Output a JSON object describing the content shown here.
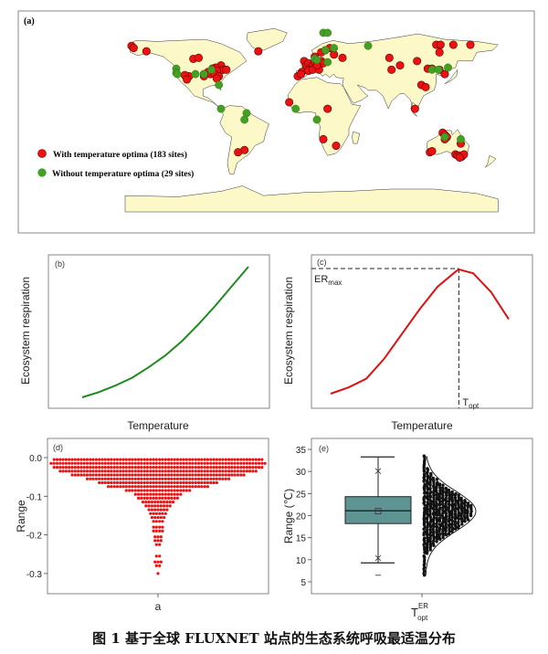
{
  "figure": {
    "caption": "图 1 基于全球 FLUXNET 站点的生态系统呼吸最适温分布"
  },
  "colors": {
    "land": "#fdf8c8",
    "coast": "#333333",
    "site_with": "#ee1111",
    "site_without": "#44a022",
    "curve_b": "#1e8a1e",
    "curve_c": "#dd1111",
    "swarm_d": "#ee1111",
    "box_fill": "#5e9494",
    "swarm_e": "#111111"
  },
  "chart_data": [
    {
      "panel": "a",
      "type": "scatter",
      "title": "(a)",
      "description": "World map of FLUXNET sites",
      "legend": [
        {
          "label": "With temperature optima (183 sites)",
          "color": "#ee1111"
        },
        {
          "label": "Without temperature optima (29 sites)",
          "color": "#44a022"
        }
      ],
      "legend_position": "bottom-left",
      "sites_with_optima_lonlat": [
        [
          -164,
          66
        ],
        [
          -162,
          64
        ],
        [
          -150,
          61
        ],
        [
          -45,
          61
        ],
        [
          -106,
          54
        ],
        [
          -101,
          55
        ],
        [
          -80,
          48
        ],
        [
          -85,
          46
        ],
        [
          -88,
          45
        ],
        [
          -78,
          44
        ],
        [
          -75,
          44
        ],
        [
          -92,
          42
        ],
        [
          -84,
          43
        ],
        [
          -90,
          40
        ],
        [
          -86,
          40
        ],
        [
          -96,
          40
        ],
        [
          -110,
          38
        ],
        [
          -114,
          39
        ],
        [
          -112,
          35
        ],
        [
          -96,
          38
        ],
        [
          -82,
          38
        ],
        [
          -84,
          36
        ],
        [
          -58,
          -30
        ],
        [
          -64,
          -32
        ],
        [
          -8,
          38
        ],
        [
          -2,
          52
        ],
        [
          0,
          48
        ],
        [
          2,
          50
        ],
        [
          4,
          46
        ],
        [
          6,
          48
        ],
        [
          8,
          51
        ],
        [
          10,
          45
        ],
        [
          12,
          48
        ],
        [
          14,
          52
        ],
        [
          -4,
          42
        ],
        [
          2,
          43
        ],
        [
          6,
          44
        ],
        [
          12,
          44
        ],
        [
          16,
          50
        ],
        [
          10,
          48
        ],
        [
          8,
          56
        ],
        [
          14,
          60
        ],
        [
          18,
          62
        ],
        [
          22,
          64
        ],
        [
          26,
          58
        ],
        [
          34,
          55
        ],
        [
          -5,
          40
        ],
        [
          -16,
          14
        ],
        [
          20,
          8
        ],
        [
          16,
          -20
        ],
        [
          28,
          -26
        ],
        [
          78,
          55
        ],
        [
          88,
          48
        ],
        [
          104,
          52
        ],
        [
          80,
          44
        ],
        [
          114,
          45
        ],
        [
          118,
          45
        ],
        [
          125,
          44
        ],
        [
          130,
          40
        ],
        [
          108,
          30
        ],
        [
          112,
          28
        ],
        [
          102,
          8
        ],
        [
          122,
          67
        ],
        [
          126,
          67
        ],
        [
          138,
          67
        ],
        [
          154,
          67
        ],
        [
          125,
          60
        ],
        [
          128,
          -14
        ],
        [
          130,
          -16
        ],
        [
          132,
          -18
        ],
        [
          130,
          -20
        ],
        [
          116,
          -32
        ],
        [
          118,
          -31
        ],
        [
          145,
          -24
        ],
        [
          140,
          -34
        ],
        [
          142,
          -35
        ],
        [
          144,
          -35
        ],
        [
          146,
          -36
        ],
        [
          148,
          -34
        ],
        [
          144,
          -37
        ]
      ],
      "sites_without_optima_lonlat": [
        [
          -122,
          45
        ],
        [
          -122,
          41
        ],
        [
          -121,
          40
        ],
        [
          -104,
          40
        ],
        [
          -96,
          40
        ],
        [
          -89,
          44
        ],
        [
          -82,
          30
        ],
        [
          -80,
          8
        ],
        [
          -56,
          4
        ],
        [
          -58,
          -2
        ],
        [
          16,
          78
        ],
        [
          20,
          78
        ],
        [
          18,
          62
        ],
        [
          26,
          64
        ],
        [
          8,
          54
        ],
        [
          10,
          53
        ],
        [
          20,
          51
        ],
        [
          58,
          66
        ],
        [
          -10,
          8
        ],
        [
          10,
          -2
        ],
        [
          118,
          44
        ],
        [
          124,
          44
        ],
        [
          133,
          46
        ],
        [
          130,
          -18
        ],
        [
          145,
          -20
        ]
      ]
    },
    {
      "panel": "b",
      "type": "line",
      "title": "(b)",
      "xlabel": "Temperature",
      "ylabel": "Ecosystem respiration",
      "description": "Exponential increase with temperature (no ticks)",
      "x": [
        0,
        0.1,
        0.2,
        0.3,
        0.4,
        0.5,
        0.6,
        0.7,
        0.8,
        0.9,
        1.0
      ],
      "y": [
        0.0,
        0.04,
        0.09,
        0.15,
        0.23,
        0.32,
        0.43,
        0.56,
        0.7,
        0.85,
        1.0
      ],
      "color": "#1e8a1e"
    },
    {
      "panel": "c",
      "type": "line",
      "title": "(c)",
      "xlabel": "Temperature",
      "ylabel": "Ecosystem respiration",
      "annotations": [
        "ERmax",
        "Topt"
      ],
      "description": "Rises to a maximum ER_max at T_opt, then declines",
      "x": [
        0,
        0.1,
        0.2,
        0.3,
        0.4,
        0.5,
        0.6,
        0.7,
        0.72,
        0.8,
        0.9,
        1.0
      ],
      "y": [
        0.0,
        0.05,
        0.12,
        0.28,
        0.48,
        0.68,
        0.86,
        0.98,
        1.0,
        0.97,
        0.82,
        0.6
      ],
      "peak_x": 0.72,
      "color": "#dd1111"
    },
    {
      "panel": "d",
      "type": "scatter",
      "title": "(d)",
      "xlabel": "a",
      "ylabel": "Range",
      "yticks": [
        "0.0",
        "-0.1",
        "-0.2",
        "-0.3"
      ],
      "ylim": [
        -0.35,
        0.0
      ],
      "description": "Beeswarm of parameter a; dense near 0 tapering to minimum near -0.30",
      "value_bins": [
        {
          "y": -0.005,
          "n": 70
        },
        {
          "y": -0.015,
          "n": 72
        },
        {
          "y": -0.025,
          "n": 70
        },
        {
          "y": -0.035,
          "n": 66
        },
        {
          "y": -0.045,
          "n": 58
        },
        {
          "y": -0.055,
          "n": 48
        },
        {
          "y": -0.065,
          "n": 40
        },
        {
          "y": -0.075,
          "n": 34
        },
        {
          "y": -0.085,
          "n": 22
        },
        {
          "y": -0.095,
          "n": 16
        },
        {
          "y": -0.105,
          "n": 14
        },
        {
          "y": -0.115,
          "n": 11
        },
        {
          "y": -0.125,
          "n": 9
        },
        {
          "y": -0.135,
          "n": 7
        },
        {
          "y": -0.145,
          "n": 6
        },
        {
          "y": -0.155,
          "n": 5
        },
        {
          "y": -0.165,
          "n": 4
        },
        {
          "y": -0.18,
          "n": 4
        },
        {
          "y": -0.19,
          "n": 4
        },
        {
          "y": -0.205,
          "n": 3
        },
        {
          "y": -0.215,
          "n": 3
        },
        {
          "y": -0.225,
          "n": 2
        },
        {
          "y": -0.255,
          "n": 2
        },
        {
          "y": -0.27,
          "n": 3
        },
        {
          "y": -0.28,
          "n": 2
        },
        {
          "y": -0.3,
          "n": 1
        }
      ],
      "color": "#ee1111"
    },
    {
      "panel": "e",
      "type": "box",
      "title": "(e)",
      "xlabel": "T_opt^ER",
      "xlabel_main": "T",
      "xlabel_sup": "ER",
      "xlabel_sub": "opt",
      "ylabel": "Range (℃)",
      "yticks": [
        "5",
        "10",
        "15",
        "20",
        "25",
        "30",
        "35"
      ],
      "ylim": [
        2.5,
        36.5
      ],
      "box": {
        "q1": 18.2,
        "median": 21.1,
        "q3": 24.3,
        "mean": 21.0,
        "whisker_low": 9.3,
        "whisker_high": 33.3,
        "p1": 10.4,
        "p99": 30.1,
        "min": 6.5
      },
      "distribution_normal": {
        "mean": 21.0,
        "sd": 4.5
      },
      "color_box": "#5e9494",
      "color_points": "#111111"
    }
  ]
}
